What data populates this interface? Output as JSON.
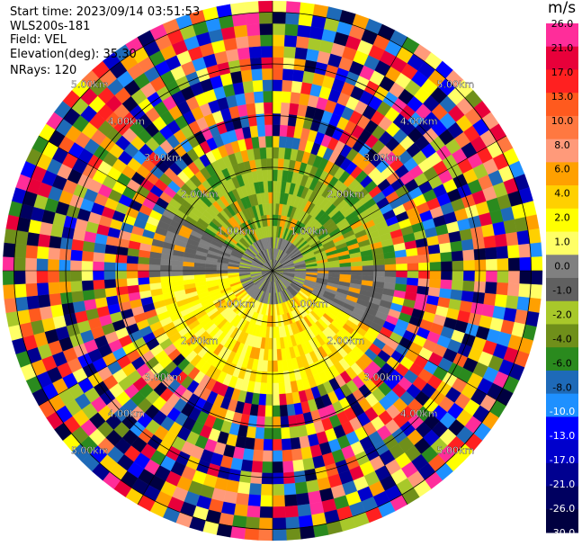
{
  "header": {
    "start_time": "Start time: 2023/09/14 03:51:53",
    "site": "WLS200s-181",
    "field": "Field: VEL",
    "elevation": "Elevation(deg): 35.30",
    "nrays": "NRays: 120"
  },
  "chart_data": {
    "type": "heatmap",
    "projection": "polar (PPI scan)",
    "field": "VEL",
    "units": "m/s",
    "rays": 120,
    "range_rings_km": [
      1.0,
      2.0,
      3.0,
      4.0,
      5.0
    ],
    "range_labels": [
      "1.00km",
      "2.00km",
      "3.00km",
      "4.00km",
      "5.00km"
    ],
    "colorbar": {
      "ticks": [
        "26.0",
        "21.0",
        "17.0",
        "13.0",
        "10.0",
        "8.0",
        "6.0",
        "4.0",
        "2.0",
        "1.0",
        "0.0",
        "-1.0",
        "-2.0",
        "-4.0",
        "-6.0",
        "-8.0",
        "-10.0",
        "-13.0",
        "-17.0",
        "-21.0",
        "-26.0",
        "-30.0"
      ],
      "colors": [
        "#ff2d9a",
        "#e8003a",
        "#ff2020",
        "#ff5a1e",
        "#ff7840",
        "#ff9a7a",
        "#ffa000",
        "#ffd000",
        "#ffff00",
        "#ffff66",
        "#808080",
        "#606060",
        "#a8c82a",
        "#6f8f1a",
        "#2a8a1e",
        "#1e6ab8",
        "#1e90ff",
        "#0000ff",
        "#0000cc",
        "#000090",
        "#000060",
        "#000040"
      ]
    }
  }
}
